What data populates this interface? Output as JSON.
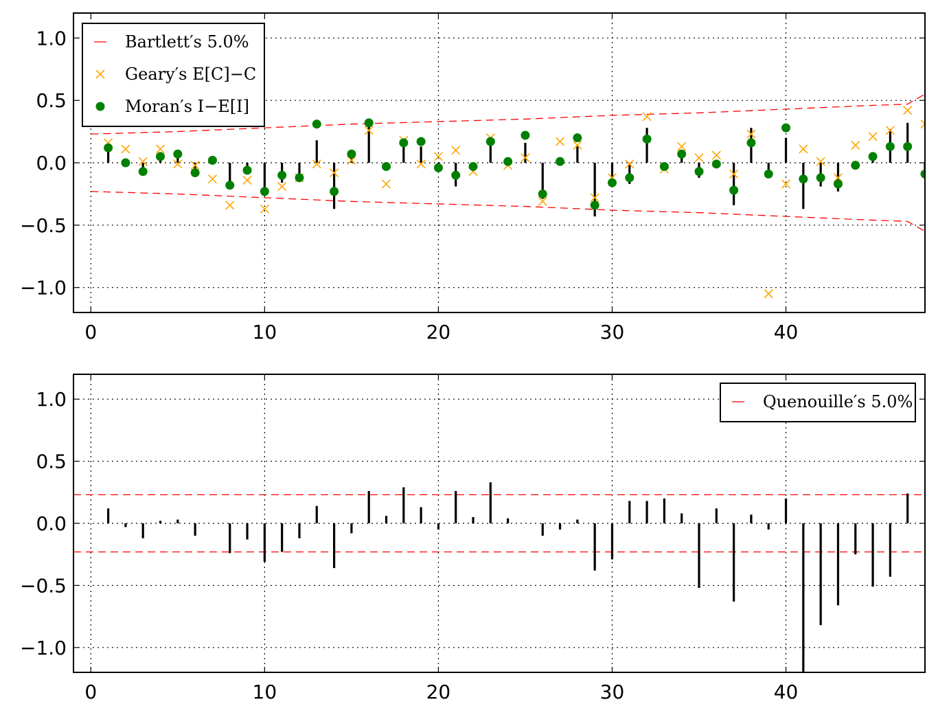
{
  "chart_data": [
    {
      "type": "scatter",
      "xlim": [
        -1,
        48
      ],
      "ylim": [
        -1.2,
        1.2
      ],
      "grid": true,
      "legend_placement": "upper-left",
      "x_ticks": [
        0,
        10,
        20,
        30,
        40
      ],
      "y_ticks": [
        1.0,
        0.5,
        0.0,
        -0.5,
        -1.0
      ],
      "x_tick_labels": [
        "0",
        "10",
        "20",
        "30",
        "40"
      ],
      "y_tick_labels": [
        "1.0",
        "0.5",
        "0.0",
        "−0.5",
        "−1.0"
      ],
      "colors": {
        "bartlett": "#ff0000",
        "geary": "#ffa500",
        "moran": "#008000",
        "stem": "#000000"
      },
      "series": [
        {
          "name": "Bartlett′s 5.0%",
          "kind": "dashed-band",
          "x": [
            0,
            5,
            10,
            15,
            20,
            25,
            30,
            35,
            40,
            45,
            47,
            48
          ],
          "upper": [
            0.23,
            0.25,
            0.28,
            0.31,
            0.33,
            0.35,
            0.38,
            0.4,
            0.43,
            0.46,
            0.47,
            0.55
          ],
          "lower": [
            -0.23,
            -0.25,
            -0.28,
            -0.31,
            -0.33,
            -0.35,
            -0.38,
            -0.4,
            -0.43,
            -0.46,
            -0.47,
            -0.55
          ]
        },
        {
          "name": "Geary′s E[C]−C",
          "kind": "x-markers",
          "x": [
            1,
            2,
            3,
            4,
            5,
            6,
            7,
            8,
            9,
            10,
            11,
            12,
            13,
            14,
            15,
            16,
            17,
            18,
            19,
            20,
            21,
            22,
            23,
            24,
            25,
            26,
            27,
            28,
            29,
            30,
            31,
            32,
            33,
            34,
            35,
            36,
            37,
            38,
            39,
            40,
            41,
            42,
            43,
            44,
            45,
            46,
            47,
            48
          ],
          "values": [
            0.16,
            0.11,
            0.01,
            0.11,
            -0.01,
            -0.02,
            -0.13,
            -0.34,
            -0.14,
            -0.37,
            -0.19,
            -0.12,
            -0.01,
            -0.08,
            0.02,
            0.26,
            -0.17,
            0.18,
            -0.01,
            0.05,
            0.1,
            -0.07,
            0.2,
            -0.02,
            0.04,
            -0.31,
            0.17,
            0.14,
            -0.28,
            -0.12,
            -0.01,
            0.37,
            -0.05,
            0.13,
            0.04,
            0.06,
            -0.09,
            0.23,
            -1.05,
            -0.17,
            0.11,
            0.01,
            -0.12,
            0.14,
            0.21,
            0.26,
            0.42,
            0.31
          ]
        },
        {
          "name": "Moran′s I−E[I]",
          "kind": "dots",
          "x": [
            1,
            2,
            3,
            4,
            5,
            6,
            7,
            8,
            9,
            10,
            11,
            12,
            13,
            14,
            15,
            16,
            17,
            18,
            19,
            20,
            21,
            22,
            23,
            24,
            25,
            26,
            27,
            28,
            29,
            30,
            31,
            32,
            33,
            34,
            35,
            36,
            37,
            38,
            39,
            40,
            41,
            42,
            43,
            44,
            45,
            46,
            47,
            48
          ],
          "values": [
            0.12,
            0.0,
            -0.07,
            0.05,
            0.07,
            -0.08,
            0.02,
            -0.18,
            -0.06,
            -0.23,
            -0.1,
            -0.12,
            0.31,
            -0.23,
            0.07,
            0.32,
            -0.03,
            0.16,
            0.17,
            -0.04,
            -0.1,
            -0.03,
            0.17,
            0.01,
            0.22,
            -0.25,
            0.01,
            0.2,
            -0.34,
            -0.16,
            -0.12,
            0.19,
            -0.03,
            0.07,
            -0.07,
            -0.01,
            -0.22,
            0.16,
            -0.09,
            0.28,
            -0.13,
            -0.12,
            -0.17,
            -0.02,
            0.05,
            0.13,
            0.13,
            -0.09
          ]
        },
        {
          "kind": "stems",
          "x": [
            1,
            2,
            3,
            4,
            5,
            6,
            7,
            8,
            9,
            10,
            11,
            12,
            13,
            14,
            15,
            16,
            17,
            18,
            19,
            20,
            21,
            22,
            23,
            24,
            25,
            26,
            27,
            28,
            29,
            30,
            31,
            32,
            33,
            34,
            35,
            36,
            37,
            38,
            39,
            40,
            41,
            42,
            43,
            44,
            45,
            46,
            47,
            48
          ],
          "values": [
            0.14,
            0.0,
            -0.07,
            0.05,
            0.08,
            -0.09,
            0.02,
            -0.18,
            -0.08,
            -0.25,
            -0.16,
            -0.12,
            0.18,
            -0.37,
            0.04,
            0.31,
            -0.03,
            0.13,
            0.13,
            -0.04,
            -0.19,
            -0.03,
            0.17,
            0.01,
            0.16,
            -0.29,
            0.01,
            0.14,
            -0.43,
            -0.15,
            -0.17,
            0.28,
            -0.03,
            0.05,
            -0.12,
            -0.01,
            -0.34,
            0.28,
            -0.09,
            0.2,
            -0.37,
            -0.19,
            -0.23,
            -0.02,
            0.04,
            0.27,
            0.32,
            -0.07
          ]
        }
      ]
    },
    {
      "type": "bar",
      "xlim": [
        -1,
        48
      ],
      "ylim": [
        -1.2,
        1.2
      ],
      "grid": true,
      "legend_placement": "upper-right",
      "x_ticks": [
        0,
        10,
        20,
        30,
        40
      ],
      "y_ticks": [
        1.0,
        0.5,
        0.0,
        -0.5,
        -1.0
      ],
      "x_tick_labels": [
        "0",
        "10",
        "20",
        "30",
        "40"
      ],
      "y_tick_labels": [
        "1.0",
        "0.5",
        "0.0",
        "−0.5",
        "−1.0"
      ],
      "colors": {
        "quenouille": "#ff0000",
        "stem": "#000000"
      },
      "series": [
        {
          "name": "Quenouille′s 5.0%",
          "kind": "dashed-band",
          "x": [
            -1,
            48
          ],
          "upper": [
            0.23,
            0.23
          ],
          "lower": [
            -0.23,
            -0.23
          ]
        },
        {
          "kind": "stems",
          "x": [
            1,
            2,
            3,
            4,
            5,
            6,
            7,
            8,
            9,
            10,
            11,
            12,
            13,
            14,
            15,
            16,
            17,
            18,
            19,
            20,
            21,
            22,
            23,
            24,
            25,
            26,
            27,
            28,
            29,
            30,
            31,
            32,
            33,
            34,
            35,
            36,
            37,
            38,
            39,
            40,
            41,
            42,
            43,
            44,
            45,
            46,
            47
          ],
          "values": [
            0.12,
            -0.03,
            -0.12,
            0.02,
            0.03,
            -0.1,
            0.0,
            -0.24,
            -0.13,
            -0.31,
            -0.23,
            -0.12,
            0.14,
            -0.36,
            -0.08,
            0.26,
            0.06,
            0.29,
            0.13,
            -0.05,
            0.26,
            0.05,
            0.33,
            0.04,
            0.0,
            -0.1,
            -0.05,
            0.03,
            -0.38,
            -0.29,
            0.18,
            0.18,
            0.2,
            0.08,
            -0.52,
            0.12,
            -0.63,
            0.07,
            -0.05,
            0.2,
            -1.2,
            -0.82,
            -0.66,
            -0.25,
            -0.51,
            -0.43,
            0.24
          ]
        }
      ]
    }
  ]
}
